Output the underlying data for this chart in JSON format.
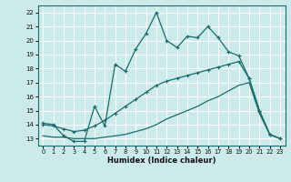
{
  "xlabel": "Humidex (Indice chaleur)",
  "xlim": [
    -0.5,
    23.5
  ],
  "ylim": [
    12.5,
    22.5
  ],
  "yticks": [
    13,
    14,
    15,
    16,
    17,
    18,
    19,
    20,
    21,
    22
  ],
  "xticks": [
    0,
    1,
    2,
    3,
    4,
    5,
    6,
    7,
    8,
    9,
    10,
    11,
    12,
    13,
    14,
    15,
    16,
    17,
    18,
    19,
    20,
    21,
    22,
    23
  ],
  "bg_color": "#cceaea",
  "line_color": "#1a6b6b",
  "grid_color": "#ffffff",
  "line1_x": [
    0,
    1,
    2,
    3,
    4,
    5,
    6,
    7,
    8,
    9,
    10,
    11,
    12,
    13,
    14,
    15,
    16,
    17,
    18,
    19,
    20,
    21,
    22,
    23
  ],
  "line1_y": [
    14.1,
    14.0,
    13.2,
    12.8,
    12.8,
    15.3,
    13.9,
    18.3,
    17.8,
    19.4,
    20.5,
    22.0,
    20.0,
    19.5,
    20.3,
    20.2,
    21.0,
    20.2,
    19.2,
    18.9,
    17.3,
    15.0,
    13.3,
    13.0
  ],
  "line2_x": [
    0,
    1,
    2,
    3,
    4,
    5,
    6,
    7,
    8,
    9,
    10,
    11,
    12,
    13,
    14,
    15,
    16,
    17,
    18,
    19,
    20,
    21,
    22,
    23
  ],
  "line2_y": [
    14.0,
    13.9,
    13.7,
    13.5,
    13.6,
    13.9,
    14.3,
    14.8,
    15.3,
    15.8,
    16.3,
    16.8,
    17.1,
    17.3,
    17.5,
    17.7,
    17.9,
    18.1,
    18.3,
    18.5,
    17.3,
    15.0,
    13.3,
    13.0
  ],
  "line3_x": [
    0,
    1,
    2,
    3,
    4,
    5,
    6,
    7,
    8,
    9,
    10,
    11,
    12,
    13,
    14,
    15,
    16,
    17,
    18,
    19,
    20,
    21,
    22,
    23
  ],
  "line3_y": [
    13.2,
    13.1,
    13.1,
    13.0,
    13.0,
    13.0,
    13.1,
    13.2,
    13.3,
    13.5,
    13.7,
    14.0,
    14.4,
    14.7,
    15.0,
    15.3,
    15.7,
    16.0,
    16.4,
    16.8,
    17.0,
    14.8,
    13.3,
    13.0
  ]
}
